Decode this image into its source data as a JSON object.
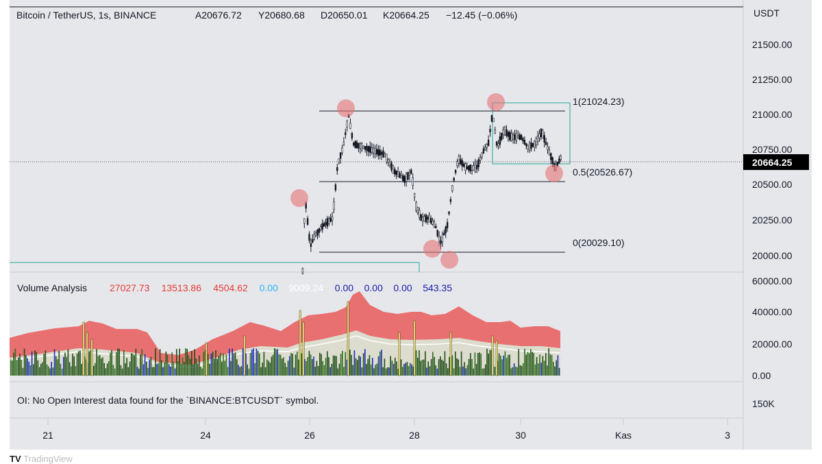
{
  "header": {
    "symbol": "Bitcoin / TetherUS, 1s, BINANCE",
    "open": "A20676.72",
    "high": "Y20680.68",
    "low": "D20650.01",
    "close": "K20664.25",
    "change": "−12.45 (−0.06%)"
  },
  "price_axis": {
    "unit": "USDT",
    "ticks": [
      "21500.00",
      "21250.00",
      "21000.00",
      "20750.00",
      "20500.00",
      "20250.00",
      "20000.00"
    ],
    "current_price": "20664.25",
    "current_price_bg": "#000000"
  },
  "fib_levels": [
    {
      "label": "1(21024.23)",
      "price": 21024.23
    },
    {
      "label": "0.5(20526.67)",
      "price": 20526.67
    },
    {
      "label": "0(20029.10)",
      "price": 20029.1
    }
  ],
  "volume_indicator": {
    "name": "Volume Analysis",
    "values": [
      {
        "text": "27027.73",
        "color": "#e53935"
      },
      {
        "text": "13513.86",
        "color": "#e53935"
      },
      {
        "text": "4504.62",
        "color": "#e53935"
      },
      {
        "text": "0.00",
        "color": "#29b6f6"
      },
      {
        "text": "9009.24",
        "color": "#ffffff"
      },
      {
        "text": "0.00",
        "color": "#1a1aa6"
      },
      {
        "text": "0.00",
        "color": "#1a1aa6"
      },
      {
        "text": "0.00",
        "color": "#1a1aa6"
      },
      {
        "text": "543.35",
        "color": "#1a1aa6"
      }
    ],
    "axis_ticks": [
      "60000.00",
      "40000.00",
      "20000.00",
      "0.00"
    ]
  },
  "open_interest": {
    "message": "OI: No Open Interest data found for the `BINANCE:BTCUSDT` symbol.",
    "axis_tick": "150K"
  },
  "time_axis": {
    "ticks": [
      "21",
      "24",
      "26",
      "28",
      "30",
      "Kas",
      "3"
    ]
  },
  "footer": {
    "logo_mark": "TV",
    "logo_text": "TradingView"
  },
  "colors": {
    "circle": "#e57373",
    "band": "#e85b5b",
    "channel": "#26a69a"
  },
  "chart_data": {
    "type": "candlestick",
    "symbol": "BTCUSDT",
    "fib_retracement": [
      21024.23,
      20526.67,
      20029.1
    ],
    "last_price": 20664.25
  }
}
